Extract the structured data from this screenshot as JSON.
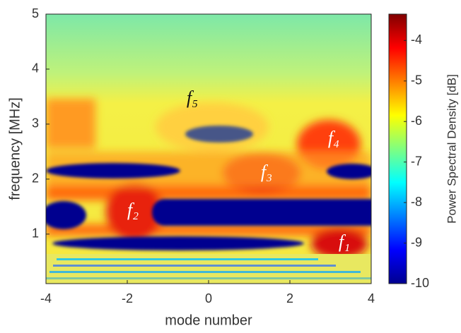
{
  "chart_data": {
    "type": "heatmap",
    "x_label": "mode number",
    "y_label": "frequency [MHz]",
    "colorbar_label": "Power Spectral Density [dB]",
    "colormap": "jet",
    "xlim": [
      -4,
      4
    ],
    "xticks": [
      -4,
      -2,
      0,
      2,
      4
    ],
    "ylim": [
      0.1,
      5
    ],
    "yticks": [
      1,
      2,
      3,
      4,
      5
    ],
    "clim": [
      -10,
      -3.35
    ],
    "cticks": [
      -4,
      -5,
      -6,
      -7,
      -8,
      -9,
      -10
    ],
    "annotations": [
      "f₁",
      "f₂",
      "f₃",
      "f₄",
      "f₅"
    ]
  }
}
